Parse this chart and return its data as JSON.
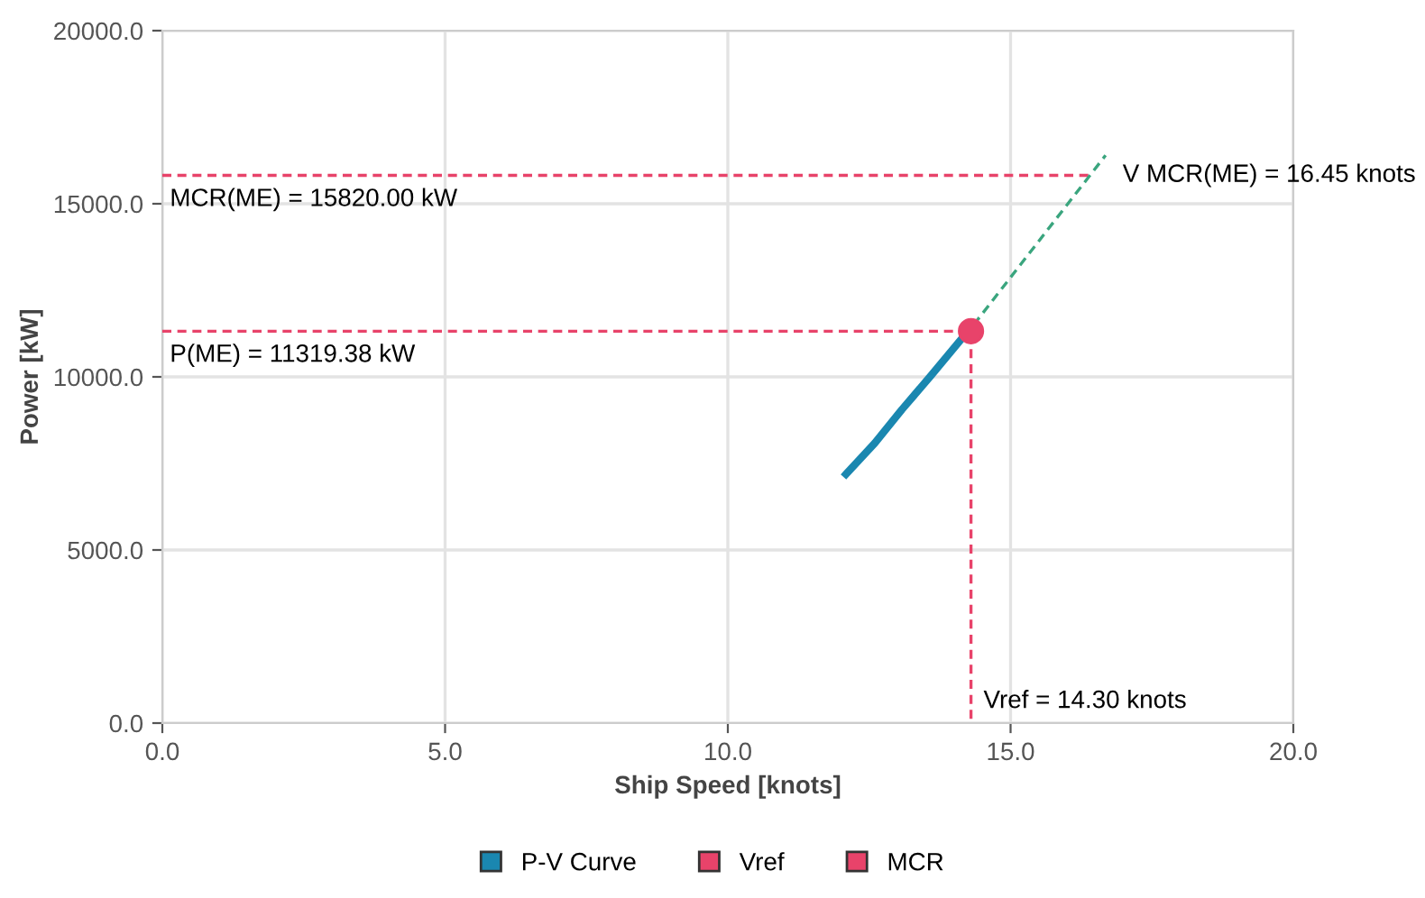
{
  "chart_data": {
    "type": "line",
    "xlabel": "Ship Speed [knots]",
    "ylabel": "Power [kW]",
    "xlim": [
      0,
      20
    ],
    "ylim": [
      0,
      20000
    ],
    "xticks": [
      {
        "value": 0,
        "label": "0.0"
      },
      {
        "value": 5,
        "label": "5.0"
      },
      {
        "value": 10,
        "label": "10.0"
      },
      {
        "value": 15,
        "label": "15.0"
      },
      {
        "value": 20,
        "label": "20.0"
      }
    ],
    "yticks": [
      {
        "value": 0,
        "label": "0.0"
      },
      {
        "value": 5000,
        "label": "5000.0"
      },
      {
        "value": 10000,
        "label": "10000.0"
      },
      {
        "value": 15000,
        "label": "15000.0"
      },
      {
        "value": 20000,
        "label": "20000.0"
      }
    ],
    "grid": true,
    "legend": "bottom",
    "series": [
      {
        "name": "P-V Curve",
        "color": "#1a87b0",
        "x": [
          12.09,
          12.6,
          13.08,
          13.6,
          14.13
        ],
        "values": [
          7190,
          8090,
          9060,
          10050,
          11090
        ]
      },
      {
        "name": "Vref",
        "type": "line",
        "color": "#e8436a",
        "line_style": "dashed",
        "x": [
          0,
          14.3,
          14.3
        ],
        "values": [
          11320,
          11320,
          0
        ]
      },
      {
        "name": "MCR",
        "type": "line",
        "color": "#e8436a",
        "line_style": "dashed",
        "x": [
          0,
          16.45
        ],
        "values": [
          15820,
          15820
        ]
      },
      {
        "type": "scatter",
        "color": "#e8436a",
        "marker": "circle",
        "x": [
          14.3
        ],
        "values": [
          11320
        ]
      },
      {
        "type": "line",
        "color": "#3aa57e",
        "line_style": "dashed",
        "x": [
          14.35,
          16.68
        ],
        "values": [
          11510,
          16400
        ]
      }
    ],
    "annotations": [
      {
        "text": "MCR(ME) = 15820.00 kW",
        "x": 0,
        "y": 15820
      },
      {
        "text": "P(ME) = 11319.38 kW",
        "x": 0,
        "y": 11319.38
      },
      {
        "text": "V MCR(ME) = 16.45 knots",
        "x": 16.45,
        "y": 15820
      },
      {
        "text": "Vref = 14.30 knots",
        "x": 14.3,
        "y": 0
      }
    ]
  }
}
